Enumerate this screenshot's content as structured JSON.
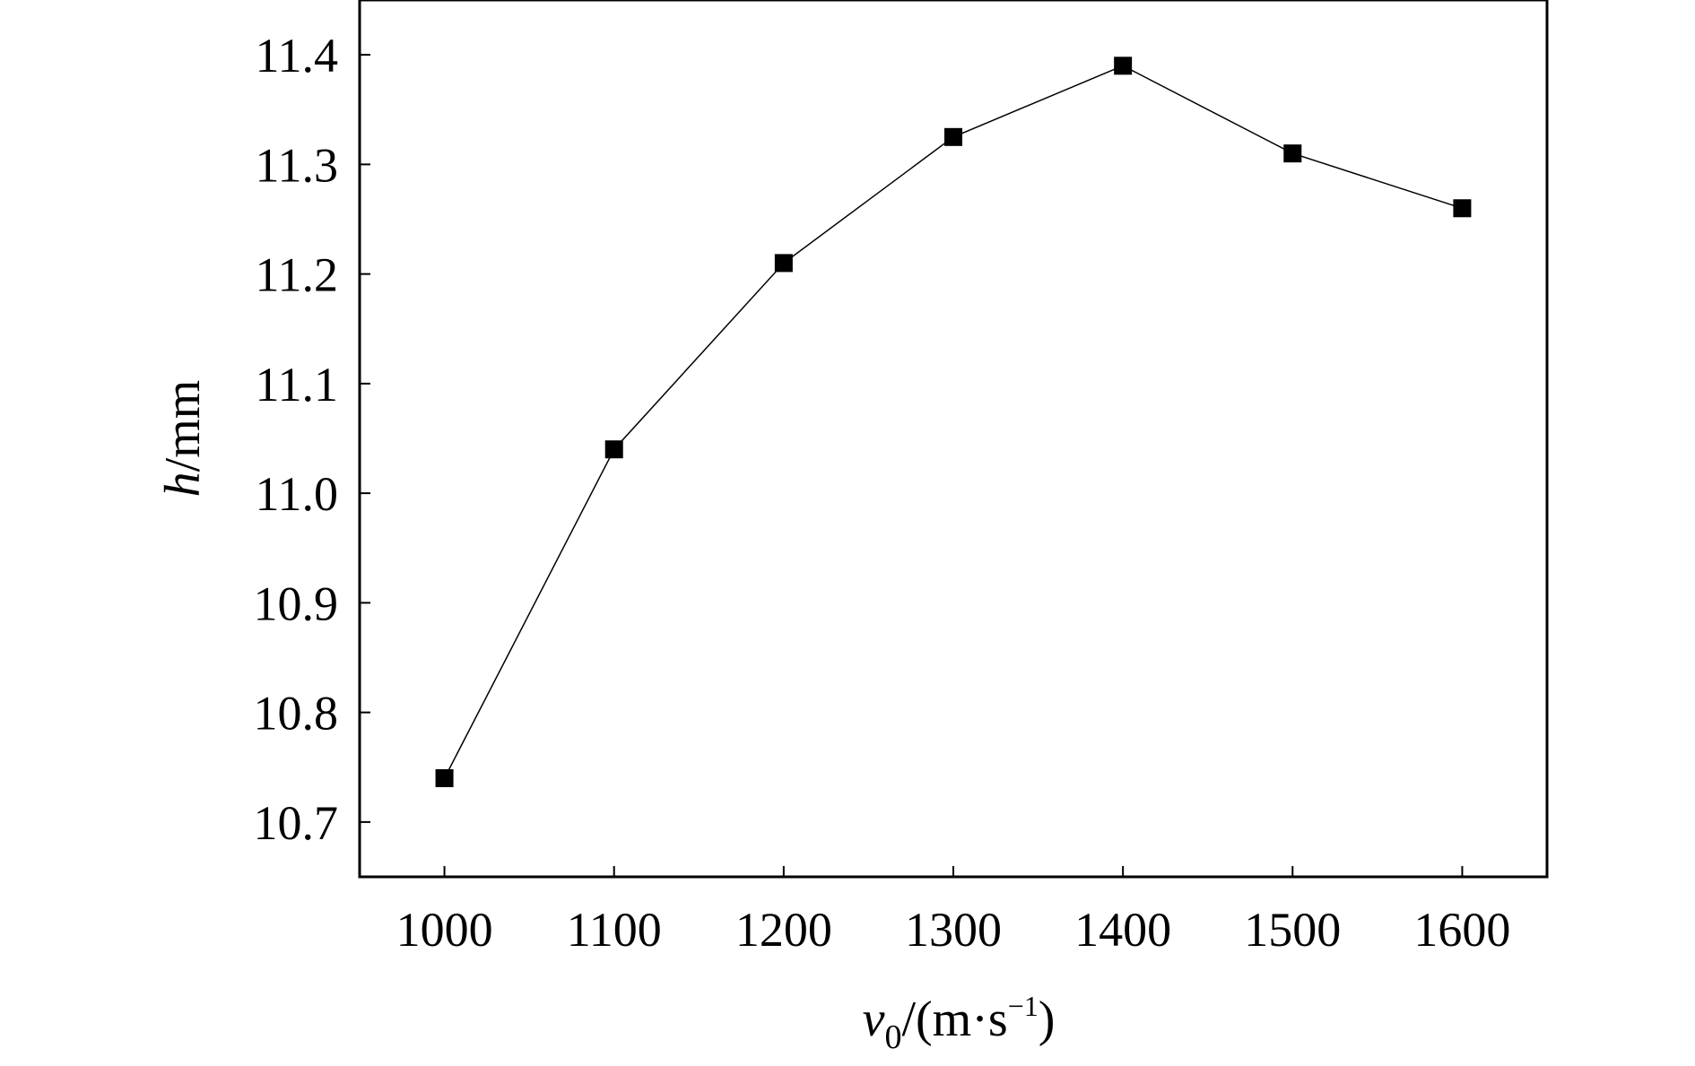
{
  "chart_data": {
    "type": "line",
    "title": "",
    "marker": "square",
    "colors": {
      "line": "#000000",
      "marker": "#000000",
      "axes": "#000000"
    },
    "x": [
      1000,
      1100,
      1200,
      1300,
      1400,
      1500,
      1600
    ],
    "series": [
      {
        "values": [
          10.74,
          11.04,
          11.21,
          11.325,
          11.39,
          11.31,
          11.26
        ]
      }
    ],
    "xlim": [
      950,
      1650
    ],
    "ylim": [
      10.65,
      11.45
    ],
    "xticks": [
      1000,
      1100,
      1200,
      1300,
      1400,
      1500,
      1600
    ],
    "yticks": [
      10.7,
      10.8,
      10.9,
      11.0,
      11.1,
      11.2,
      11.3,
      11.4
    ],
    "xtick_labels": [
      "1000",
      "1100",
      "1200",
      "1300",
      "1400",
      "1500",
      "1600"
    ],
    "ytick_labels": [
      "10.7",
      "10.8",
      "10.9",
      "11.0",
      "11.1",
      "11.2",
      "11.3",
      "11.4"
    ],
    "xlabel": {
      "var": "v",
      "sub": "0",
      "unit_open": "/(m·s",
      "sup": "−1",
      "unit_close": ")"
    },
    "ylabel": {
      "var": "h",
      "unit": "/mm"
    },
    "grid": false,
    "legend": "none"
  }
}
